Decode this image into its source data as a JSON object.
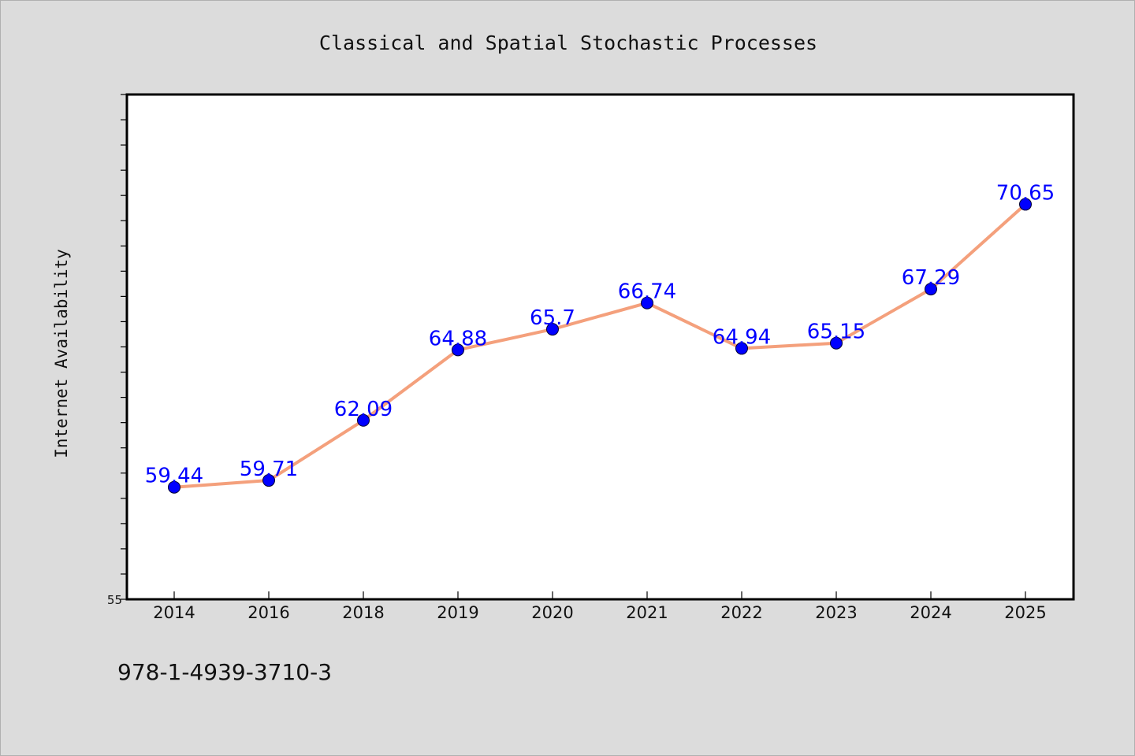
{
  "footer_code": "978-1-4939-3710-3",
  "colors": {
    "background": "#dcdcdc",
    "plot_background": "#ffffff",
    "line": "#f4a07c",
    "marker": "#0000ff",
    "label": "#0000ff"
  },
  "chart_data": {
    "type": "line",
    "title": "Classical and Spatial Stochastic Processes",
    "xlabel": "",
    "ylabel": "Internet Availability",
    "categories": [
      "2014",
      "2016",
      "2018",
      "2019",
      "2020",
      "2021",
      "2022",
      "2023",
      "2024",
      "2025"
    ],
    "series": [
      {
        "values": [
          59.44,
          59.71,
          62.09,
          64.88,
          65.7,
          66.74,
          64.94,
          65.15,
          67.29,
          70.65
        ],
        "labels": [
          "59.44",
          "59.71",
          "62.09",
          "64.88",
          "65.7",
          "66.74",
          "64.94",
          "65.15",
          "67.29",
          "70.65"
        ]
      }
    ],
    "ylim": [
      55,
      75
    ],
    "y_tick_labels": [
      "55"
    ],
    "y_minor_step": 1,
    "grid": false,
    "legend": "none"
  }
}
